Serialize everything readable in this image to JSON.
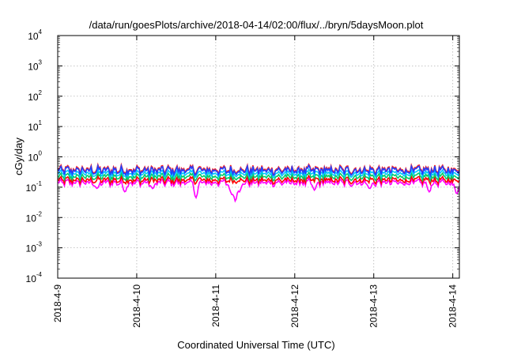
{
  "chart_data": {
    "type": "line",
    "title": "/data/run/goesPlots/archive/2018-04-14/02:00/flux/../bryn/5daysMoon.plot",
    "xlabel": "Coordinated Universal Time (UTC)",
    "ylabel": "cGy/day",
    "yscale": "log",
    "ylim": [
      0.0001,
      10000
    ],
    "xlim": [
      "2018-04-09 00:00",
      "2018-04-14 02:00"
    ],
    "grid": true,
    "x_ticks": [
      "2018-4-9",
      "2018-4-10",
      "2018-4-11",
      "2018-4-12",
      "2018-4-13",
      "2018-4-14"
    ],
    "y_ticks": [
      {
        "base": "10",
        "exp": "-4"
      },
      {
        "base": "10",
        "exp": "-3"
      },
      {
        "base": "10",
        "exp": "-2"
      },
      {
        "base": "10",
        "exp": "-1"
      },
      {
        "base": "10",
        "exp": "0"
      },
      {
        "base": "10",
        "exp": "1"
      },
      {
        "base": "10",
        "exp": "2"
      },
      {
        "base": "10",
        "exp": "3"
      },
      {
        "base": "10",
        "exp": "4"
      }
    ],
    "series": [
      {
        "color": "#ff00ff",
        "typical": 0.14,
        "dips": [
          {
            "day": 0.5,
            "value": 0.09
          },
          {
            "day": 0.85,
            "value": 0.07
          },
          {
            "day": 1.2,
            "value": 0.09
          },
          {
            "day": 1.75,
            "value": 0.045
          },
          {
            "day": 2.2,
            "value": 0.06
          },
          {
            "day": 2.25,
            "value": 0.033
          },
          {
            "day": 2.3,
            "value": 0.07
          },
          {
            "day": 3.25,
            "value": 0.08
          },
          {
            "day": 3.95,
            "value": 0.09
          },
          {
            "day": 4.7,
            "value": 0.07
          },
          {
            "day": 5.05,
            "value": 0.06
          }
        ]
      },
      {
        "color": "#ff0000",
        "typical": 0.17,
        "dips": []
      },
      {
        "color": "#00cc66",
        "typical": 0.22,
        "dips": []
      },
      {
        "color": "#00c8ff",
        "typical": 0.28,
        "dips": []
      },
      {
        "color": "#ff2020",
        "typical": 0.38,
        "dips": []
      },
      {
        "color": "#2040ff",
        "typical": 0.35,
        "dips": []
      }
    ]
  }
}
